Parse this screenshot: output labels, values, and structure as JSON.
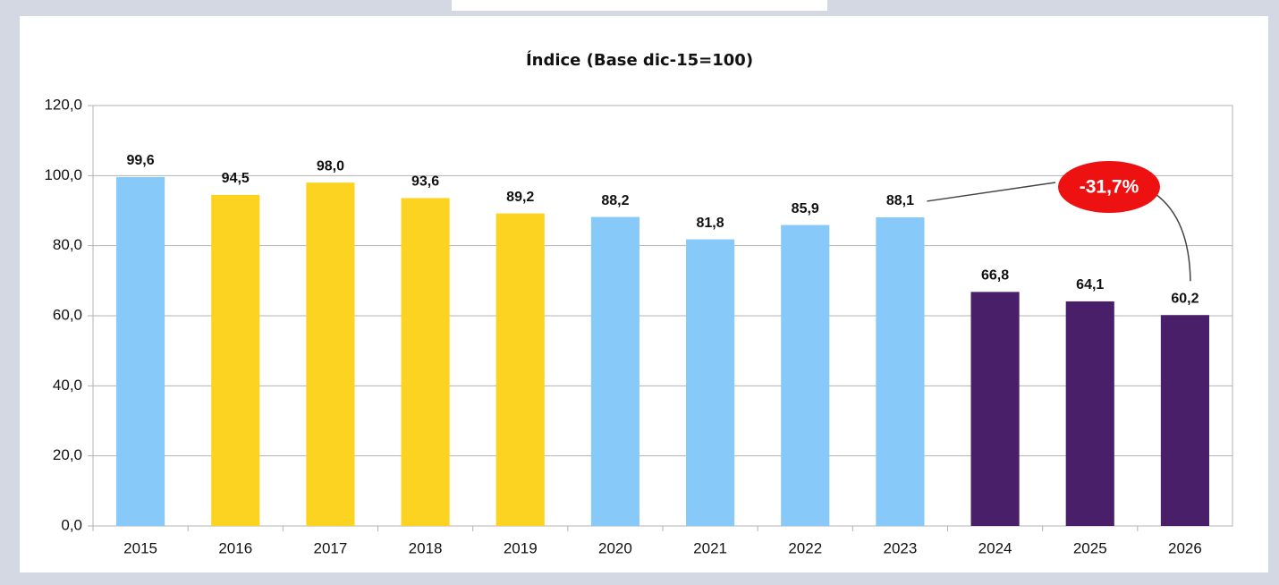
{
  "chart_data": {
    "type": "bar",
    "title": "Índice (Base dic-15=100)",
    "categories": [
      "2015",
      "2016",
      "2017",
      "2018",
      "2019",
      "2020",
      "2021",
      "2022",
      "2023",
      "2024",
      "2025",
      "2026"
    ],
    "values": [
      99.6,
      94.5,
      98.0,
      93.6,
      89.2,
      88.2,
      81.8,
      85.9,
      88.1,
      66.8,
      64.1,
      60.2
    ],
    "value_labels": [
      "99,6",
      "94,5",
      "98,0",
      "93,6",
      "89,2",
      "88,2",
      "81,8",
      "85,9",
      "88,1",
      "66,8",
      "64,1",
      "60,2"
    ],
    "colors": [
      "#87c9f8",
      "#fdd322",
      "#fdd322",
      "#fdd322",
      "#fdd322",
      "#87c9f8",
      "#87c9f8",
      "#87c9f8",
      "#87c9f8",
      "#4a1f69",
      "#4a1f69",
      "#4a1f69"
    ],
    "ylim": [
      0,
      120
    ],
    "yticks": [
      {
        "value": 0,
        "label": "0,0"
      },
      {
        "value": 20,
        "label": "20,0"
      },
      {
        "value": 40,
        "label": "40,0"
      },
      {
        "value": 60,
        "label": "60,0"
      },
      {
        "value": 80,
        "label": "80,0"
      },
      {
        "value": 100,
        "label": "100,0"
      },
      {
        "value": 120,
        "label": "120,0"
      }
    ],
    "grid": true,
    "annotation": {
      "text": "-31,7%",
      "color": "#ee1111"
    }
  }
}
